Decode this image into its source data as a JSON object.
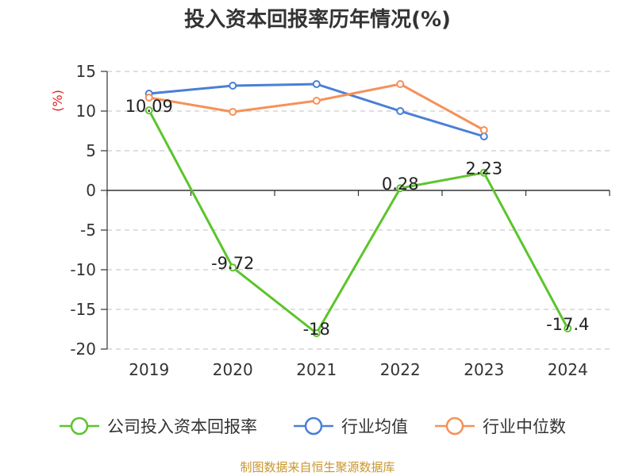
{
  "title": "投入资本回报率历年情况(%)",
  "source": "制图数据来自恒生聚源数据库",
  "chart_data": {
    "type": "line",
    "title": "投入资本回报率历年情况(%)",
    "ylabel": "(%)",
    "xlabel": "",
    "ylim": [
      -20,
      15
    ],
    "yticks": [
      15,
      10,
      5,
      0,
      -5,
      -10,
      -15,
      -20
    ],
    "categories": [
      "2019",
      "2020",
      "2021",
      "2022",
      "2023",
      "2024"
    ],
    "series": [
      {
        "name": "公司投入资本回报率",
        "color": "#5cc42c",
        "values": [
          10.09,
          -9.72,
          -18,
          0.28,
          2.23,
          -17.4
        ],
        "labels": [
          "10.09",
          "-9.72",
          "-18",
          "0.28",
          "2.23",
          "-17.4"
        ]
      },
      {
        "name": "行业均值",
        "color": "#4a7fd6",
        "values": [
          12.2,
          13.2,
          13.4,
          10.0,
          6.8,
          null
        ]
      },
      {
        "name": "行业中位数",
        "color": "#f5915a",
        "values": [
          11.7,
          9.9,
          11.3,
          13.4,
          7.6,
          null
        ]
      }
    ],
    "legend_position": "bottom",
    "grid": true
  }
}
